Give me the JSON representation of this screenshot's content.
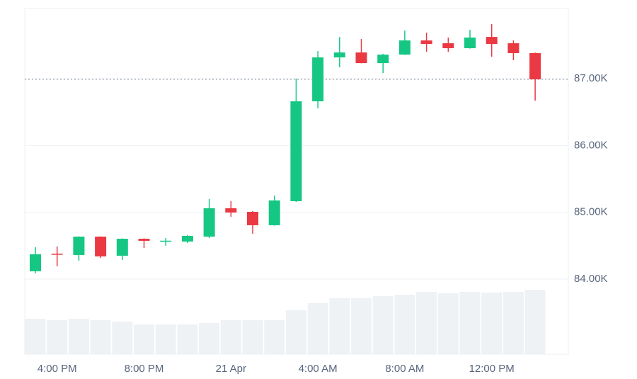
{
  "chart_data": {
    "type": "candlestick",
    "categories": [
      null,
      "4:00 PM",
      null,
      null,
      null,
      "8:00 PM",
      null,
      null,
      null,
      "21 Apr",
      null,
      null,
      null,
      "4:00 AM",
      null,
      null,
      null,
      "8:00 AM",
      null,
      null,
      null,
      "12:00 PM",
      null,
      null
    ],
    "open": [
      84117,
      84380,
      84361,
      84636,
      84350,
      84604,
      84560,
      84562,
      84636,
      85060,
      85007,
      84806,
      85166,
      86661,
      87318,
      87392,
      87233,
      87360,
      87572,
      87530,
      87456,
      87625,
      87530,
      87382
    ],
    "high": [
      84477,
      84488,
      84640,
      84640,
      84610,
      84610,
      84615,
      84660,
      85198,
      85166,
      85018,
      85251,
      87000,
      87413,
      87625,
      87594,
      87370,
      87720,
      87689,
      87615,
      87731,
      87816,
      87572,
      87390
    ],
    "low": [
      84085,
      84191,
      84276,
      84318,
      84286,
      84467,
      84500,
      84540,
      84615,
      84933,
      84679,
      84800,
      85156,
      86555,
      87170,
      87230,
      87085,
      87355,
      87403,
      87403,
      87450,
      87329,
      87276,
      86671
    ],
    "close": [
      84371,
      84370,
      84636,
      84340,
      84604,
      84573,
      84575,
      84647,
      85060,
      84996,
      84806,
      85177,
      86661,
      87318,
      87392,
      87233,
      87360,
      87572,
      87519,
      87456,
      87615,
      87519,
      87382,
      86990
    ],
    "volume": [
      50,
      48,
      50,
      48,
      46,
      42,
      42,
      42,
      44,
      48,
      48,
      48,
      62,
      72,
      79,
      79,
      82,
      84,
      88,
      86,
      88,
      87,
      88,
      91
    ],
    "up_color": "#16c784",
    "down_color": "#ea3943",
    "volume_color": "#eff2f5",
    "ylim": [
      82876,
      88050
    ],
    "yticks": [
      {
        "value": 84000,
        "label": "84.00K"
      },
      {
        "value": 85000,
        "label": "85.00K"
      },
      {
        "value": 86000,
        "label": "86.00K"
      },
      {
        "value": 87000,
        "label": "87.00K"
      }
    ],
    "y2lim": [
      0,
      488
    ],
    "grid": true
  }
}
